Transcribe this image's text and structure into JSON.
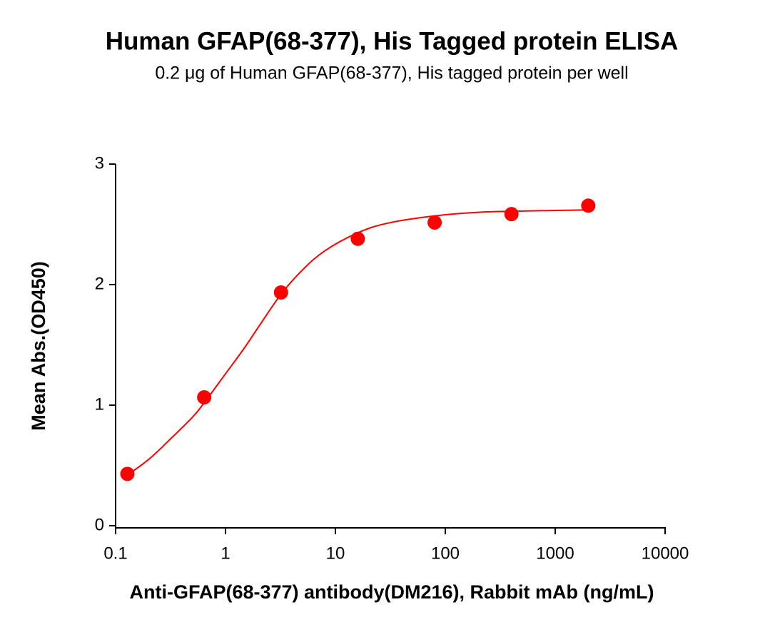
{
  "chart_data": {
    "type": "scatter",
    "title": "Human GFAP(68-377), His Tagged protein ELISA",
    "subtitle": "0.2 μg of Human GFAP(68-377), His tagged protein per well",
    "x_label": "Anti-GFAP(68-377) antibody(DM216), Rabbit mAb (ng/mL)",
    "y_label": "Mean Abs.(OD450)",
    "x": [
      0.128,
      0.64,
      3.2,
      16,
      80,
      400,
      2000
    ],
    "values": [
      0.43,
      1.065,
      1.935,
      2.38,
      2.515,
      2.585,
      2.655
    ],
    "fit": {
      "x": [
        0.128,
        0.2,
        0.3,
        0.5,
        0.64,
        1,
        1.5,
        2,
        3.2,
        5,
        8,
        16,
        30,
        80,
        200,
        500,
        2000
      ],
      "values": [
        0.42,
        0.55,
        0.7,
        0.9,
        1.02,
        1.26,
        1.48,
        1.65,
        1.92,
        2.12,
        2.28,
        2.43,
        2.51,
        2.57,
        2.6,
        2.61,
        2.62
      ]
    },
    "color": "#ff0000",
    "xscale": "log",
    "xlim": [
      0.1,
      10000
    ],
    "xticks": [
      0.1,
      1,
      10,
      100,
      1000,
      10000
    ],
    "ylim": [
      0,
      3
    ],
    "yticks": [
      0,
      1,
      2,
      3
    ]
  }
}
